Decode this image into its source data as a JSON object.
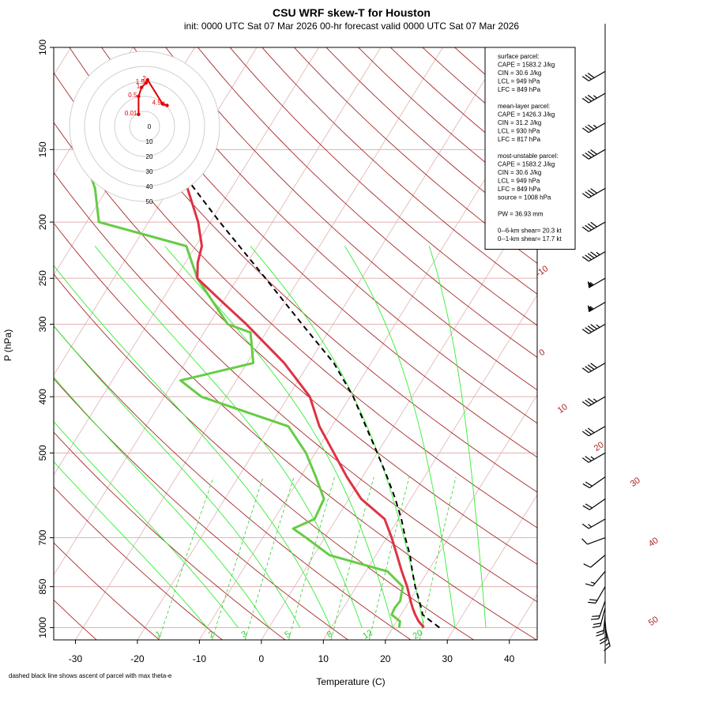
{
  "title": "CSU WRF skew-T for Houston",
  "subtitle": "init: 0000 UTC Sat 07 Mar 2026    00-hr forecast valid 0000 UTC Sat 07 Mar 2026",
  "footnote": "dashed black line shows ascent of parcel with max theta-e",
  "stats_box": [
    "surface parcel:",
    "CAPE = 1583.2 J/kg",
    "CIN = 30.6 J/kg",
    "LCL = 949 hPa",
    "LFC = 849 hPa",
    "",
    "mean-layer parcel:",
    "CAPE = 1426.3 J/kg",
    "CIN = 31.2 J/kg",
    "LCL = 930 hPa",
    "LFC = 817 hPa",
    "",
    "most-unstable parcel:",
    "CAPE = 1583.2 J/kg",
    "CIN = 30.6 J/kg",
    "LCL = 949 hPa",
    "LFC = 849 hPa",
    "source = 1008 hPa",
    "",
    "PW =  36.93 mm",
    "",
    "0--6-km shear= 20.3 kt",
    "0--1-km shear= 17.7 kt"
  ],
  "colors": {
    "temperature": "#dd3344",
    "dewpoint": "#66cc44",
    "parcel": "#000000",
    "dry_adiabat": "#a52a2a",
    "moist_adiabat": "#33ee33",
    "mixing_ratio": "#33cc33",
    "isobar": "#e0b0b0",
    "isotherm": "#e0b0b0",
    "hodograph": "#dd0000"
  },
  "chart_data": {
    "type": "skew-T log-P",
    "xlabel": "Temperature (C)",
    "ylabel": "P (hPa)",
    "x_ticks": [
      -30,
      -20,
      -10,
      0,
      10,
      20,
      30,
      40
    ],
    "y_ticks": [
      100,
      150,
      200,
      250,
      300,
      400,
      500,
      700,
      850,
      1000
    ],
    "xlim": [
      -33.5,
      44.5
    ],
    "ylim": [
      1050,
      100
    ],
    "dry_adiabat_labels": [
      "-10",
      "0",
      "10",
      "20",
      "30",
      "40",
      "50"
    ],
    "mixing_ratio_labels": [
      "1",
      "2",
      "3",
      "5",
      "8",
      "12",
      "20"
    ],
    "temperature_profile": [
      {
        "p": 1000,
        "t": 25.0
      },
      {
        "p": 975,
        "t": 23.5
      },
      {
        "p": 950,
        "t": 22.3
      },
      {
        "p": 925,
        "t": 21.2
      },
      {
        "p": 900,
        "t": 20.2
      },
      {
        "p": 850,
        "t": 18.2
      },
      {
        "p": 800,
        "t": 15.8
      },
      {
        "p": 750,
        "t": 13.4
      },
      {
        "p": 700,
        "t": 10.8
      },
      {
        "p": 650,
        "t": 7.8
      },
      {
        "p": 600,
        "t": 2.0
      },
      {
        "p": 550,
        "t": -2.5
      },
      {
        "p": 500,
        "t": -7.0
      },
      {
        "p": 450,
        "t": -12.0
      },
      {
        "p": 400,
        "t": -16.5
      },
      {
        "p": 350,
        "t": -24.0
      },
      {
        "p": 300,
        "t": -34.0
      },
      {
        "p": 275,
        "t": -40.0
      },
      {
        "p": 250,
        "t": -46.5
      },
      {
        "p": 235,
        "t": -48.0
      },
      {
        "p": 220,
        "t": -49.0
      },
      {
        "p": 200,
        "t": -52.0
      },
      {
        "p": 180,
        "t": -56.0
      },
      {
        "p": 160,
        "t": -60.5
      },
      {
        "p": 140,
        "t": -65.5
      },
      {
        "p": 125,
        "t": -70.0
      },
      {
        "p": 110,
        "t": -74.0
      }
    ],
    "dewpoint_profile": [
      {
        "p": 1000,
        "t": 21.0
      },
      {
        "p": 975,
        "t": 20.5
      },
      {
        "p": 950,
        "t": 18.5
      },
      {
        "p": 925,
        "t": 18.3
      },
      {
        "p": 900,
        "t": 18.5
      },
      {
        "p": 850,
        "t": 17.5
      },
      {
        "p": 800,
        "t": 13.5
      },
      {
        "p": 750,
        "t": 2.5
      },
      {
        "p": 700,
        "t": -3.0
      },
      {
        "p": 675,
        "t": -6.0
      },
      {
        "p": 650,
        "t": -3.5
      },
      {
        "p": 600,
        "t": -4.0
      },
      {
        "p": 550,
        "t": -7.5
      },
      {
        "p": 500,
        "t": -11.5
      },
      {
        "p": 450,
        "t": -17.0
      },
      {
        "p": 400,
        "t": -34.0
      },
      {
        "p": 375,
        "t": -39.0
      },
      {
        "p": 350,
        "t": -29.0
      },
      {
        "p": 310,
        "t": -32.5
      },
      {
        "p": 300,
        "t": -37.0
      },
      {
        "p": 250,
        "t": -46.5
      },
      {
        "p": 220,
        "t": -51.5
      },
      {
        "p": 200,
        "t": -68.0
      },
      {
        "p": 175,
        "t": -72.0
      },
      {
        "p": 160,
        "t": -75.5
      }
    ],
    "parcel_profile": [
      {
        "p": 1000,
        "t": 27.5
      },
      {
        "p": 975,
        "t": 25.5
      },
      {
        "p": 950,
        "t": 23.5
      },
      {
        "p": 925,
        "t": 22.6
      },
      {
        "p": 900,
        "t": 21.6
      },
      {
        "p": 850,
        "t": 19.5
      },
      {
        "p": 800,
        "t": 17.5
      },
      {
        "p": 750,
        "t": 15.5
      },
      {
        "p": 700,
        "t": 13.0
      },
      {
        "p": 650,
        "t": 10.5
      },
      {
        "p": 600,
        "t": 7.5
      },
      {
        "p": 550,
        "t": 4.0
      },
      {
        "p": 500,
        "t": 0.0
      },
      {
        "p": 450,
        "t": -4.5
      },
      {
        "p": 400,
        "t": -9.5
      },
      {
        "p": 350,
        "t": -16.0
      },
      {
        "p": 300,
        "t": -25.0
      },
      {
        "p": 250,
        "t": -35.5
      },
      {
        "p": 200,
        "t": -48.5
      },
      {
        "p": 175,
        "t": -56.0
      },
      {
        "p": 160,
        "t": -61.0
      }
    ],
    "wind_barbs": [
      {
        "p": 1000,
        "spd": 17,
        "dir": 165
      },
      {
        "p": 975,
        "spd": 20,
        "dir": 175
      },
      {
        "p": 950,
        "spd": 22,
        "dir": 185
      },
      {
        "p": 925,
        "spd": 22,
        "dir": 195
      },
      {
        "p": 900,
        "spd": 20,
        "dir": 200
      },
      {
        "p": 850,
        "spd": 18,
        "dir": 210
      },
      {
        "p": 800,
        "spd": 15,
        "dir": 220
      },
      {
        "p": 750,
        "spd": 12,
        "dir": 230
      },
      {
        "p": 700,
        "spd": 10,
        "dir": 250
      },
      {
        "p": 650,
        "spd": 15,
        "dir": 240
      },
      {
        "p": 600,
        "spd": 20,
        "dir": 235
      },
      {
        "p": 550,
        "spd": 20,
        "dir": 235
      },
      {
        "p": 500,
        "spd": 25,
        "dir": 240
      },
      {
        "p": 450,
        "spd": 30,
        "dir": 240
      },
      {
        "p": 400,
        "spd": 35,
        "dir": 240
      },
      {
        "p": 350,
        "spd": 40,
        "dir": 240
      },
      {
        "p": 300,
        "spd": 45,
        "dir": 240
      },
      {
        "p": 275,
        "spd": 55,
        "dir": 240
      },
      {
        "p": 250,
        "spd": 55,
        "dir": 240
      },
      {
        "p": 225,
        "spd": 45,
        "dir": 240
      },
      {
        "p": 200,
        "spd": 40,
        "dir": 240
      },
      {
        "p": 175,
        "spd": 40,
        "dir": 240
      },
      {
        "p": 150,
        "spd": 40,
        "dir": 240
      },
      {
        "p": 135,
        "spd": 35,
        "dir": 240
      },
      {
        "p": 120,
        "spd": 35,
        "dir": 240
      },
      {
        "p": 110,
        "spd": 30,
        "dir": 240
      }
    ],
    "hodograph": {
      "ring_labels": [
        "0",
        "10",
        "20",
        "30",
        "40",
        "50"
      ],
      "points": [
        {
          "label": "0.01",
          "u": -4,
          "v": 8
        },
        {
          "label": "0.5",
          "u": -4,
          "v": 20
        },
        {
          "label": "1",
          "u": -2,
          "v": 26
        },
        {
          "label": "1.5",
          "u": 1,
          "v": 29
        },
        {
          "label": "2",
          "u": 2,
          "v": 31
        },
        {
          "label": "4.5",
          "u": 12,
          "v": 15
        },
        {
          "label": "6",
          "u": 15,
          "v": 14
        }
      ]
    }
  }
}
